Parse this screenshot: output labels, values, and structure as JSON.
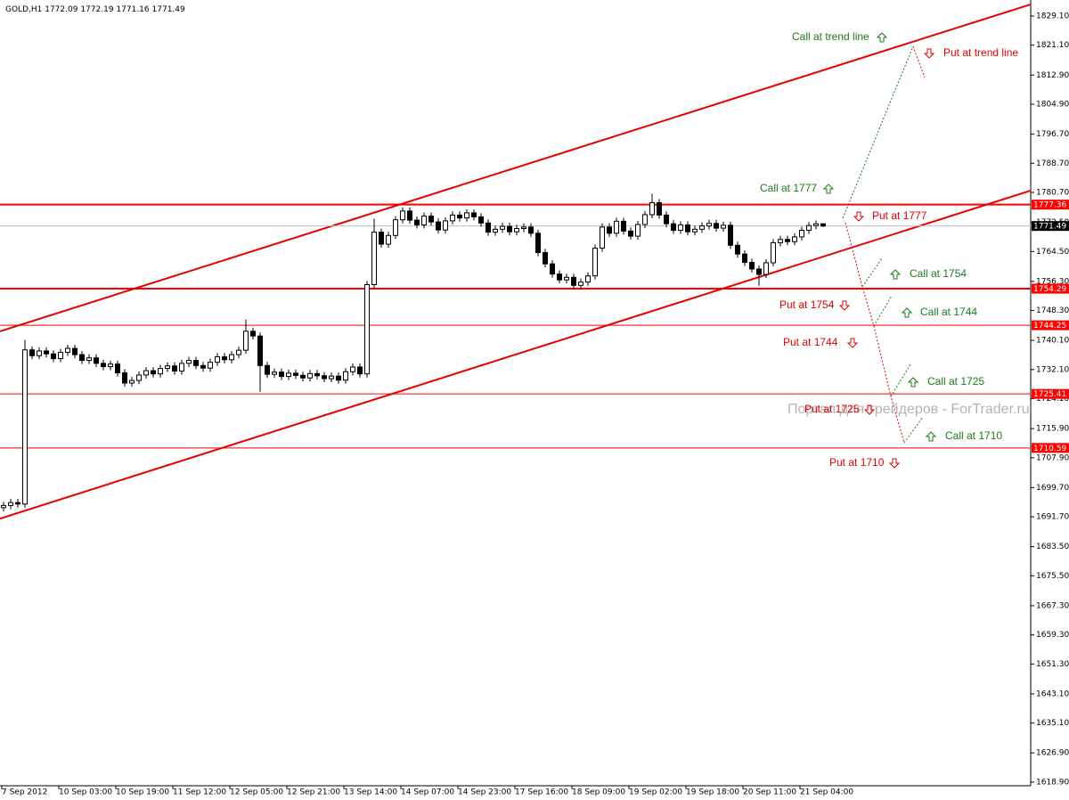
{
  "chart_data": {
    "type": "candlestick",
    "symbol": "GOLD,H1",
    "categories": [
      "7 Sep 2012",
      null,
      null,
      null,
      null,
      null,
      null,
      null,
      "10 Sep 03:00",
      null,
      null,
      null,
      null,
      null,
      null,
      null,
      "10 Sep 19:00",
      null,
      null,
      null,
      null,
      null,
      null,
      null,
      "11 Sep 12:00",
      null,
      null,
      null,
      null,
      null,
      null,
      null,
      "12 Sep 05:00",
      null,
      null,
      null,
      null,
      null,
      null,
      null,
      "12 Sep 21:00",
      null,
      null,
      null,
      null,
      null,
      null,
      null,
      "13 Sep 14:00",
      null,
      null,
      null,
      null,
      null,
      null,
      null,
      "14 Sep 07:00",
      null,
      null,
      null,
      null,
      null,
      null,
      null,
      "14 Sep 23:00",
      null,
      null,
      null,
      null,
      null,
      null,
      null,
      "17 Sep 16:00",
      null,
      null,
      null,
      null,
      null,
      null,
      null,
      "18 Sep 09:00",
      null,
      null,
      null,
      null,
      null,
      null,
      null,
      "19 Sep 02:00",
      null,
      null,
      null,
      null,
      null,
      null,
      null,
      "19 Sep 18:00",
      null,
      null,
      null,
      null,
      null,
      null,
      null,
      "20 Sep 11:00",
      null,
      null,
      null,
      null,
      null,
      null,
      null,
      "21 Sep 04:00",
      null,
      null,
      null
    ],
    "open": [
      1694.2,
      1694.8,
      1695.6,
      1695.2,
      1737.5,
      1735.9,
      1737.2,
      1736.4,
      1735.1,
      1736.8,
      1737.9,
      1736.2,
      1734.6,
      1735.3,
      1733.8,
      1732.9,
      1733.6,
      1731.2,
      1728.4,
      1729.1,
      1730.6,
      1731.8,
      1730.9,
      1732.4,
      1733.1,
      1731.7,
      1733.8,
      1734.6,
      1733.2,
      1732.5,
      1734.1,
      1735.6,
      1734.8,
      1736.2,
      1737.4,
      1742.6,
      1741.3,
      1733.2,
      1730.8,
      1731.4,
      1730.2,
      1731.1,
      1730.5,
      1729.8,
      1731.0,
      1730.4,
      1729.6,
      1730.3,
      1729.2,
      1731.5,
      1732.8,
      1730.9,
      1755.4,
      1769.8,
      1766.5,
      1768.9,
      1773.2,
      1775.6,
      1773.1,
      1771.8,
      1774.2,
      1772.6,
      1770.4,
      1772.9,
      1774.5,
      1773.7,
      1775.1,
      1774.0,
      1772.3,
      1769.8,
      1770.6,
      1771.4,
      1769.9,
      1770.8,
      1771.2,
      1769.5,
      1764.2,
      1761.1,
      1758.3,
      1756.7,
      1757.4,
      1755.2,
      1756.1,
      1757.8,
      1765.4,
      1771.2,
      1769.5,
      1772.8,
      1770.1,
      1768.7,
      1771.9,
      1774.6,
      1777.9,
      1774.5,
      1772.1,
      1770.3,
      1771.8,
      1769.9,
      1770.6,
      1771.5,
      1772.2,
      1770.9,
      1771.7,
      1766.2,
      1763.8,
      1761.5,
      1759.7,
      1758.2,
      1761.4,
      1766.9,
      1767.8,
      1767.2,
      1768.5,
      1770.3,
      1771.6,
      1772.09
    ],
    "high": [
      1695.8,
      1696.6,
      1696.6,
      1740.2,
      1738.5,
      1738.2,
      1738.2,
      1737.4,
      1737.8,
      1738.9,
      1738.9,
      1737.2,
      1736.3,
      1736.3,
      1734.8,
      1734.6,
      1734.6,
      1732.2,
      1730.1,
      1731.6,
      1732.8,
      1732.8,
      1733.4,
      1734.1,
      1734.1,
      1734.8,
      1735.6,
      1735.6,
      1734.2,
      1735.1,
      1736.6,
      1736.6,
      1737.2,
      1738.4,
      1745.8,
      1743.6,
      1742.3,
      1734.2,
      1732.4,
      1732.4,
      1732.1,
      1732.1,
      1731.5,
      1732.0,
      1732.0,
      1731.4,
      1731.3,
      1731.3,
      1732.5,
      1733.8,
      1733.8,
      1756.4,
      1773.5,
      1770.8,
      1769.9,
      1774.2,
      1776.6,
      1776.6,
      1774.1,
      1775.2,
      1775.2,
      1773.6,
      1773.9,
      1775.5,
      1775.5,
      1776.1,
      1776.1,
      1775.0,
      1773.3,
      1771.6,
      1772.4,
      1772.4,
      1771.8,
      1772.2,
      1772.2,
      1770.5,
      1765.2,
      1762.1,
      1759.3,
      1758.4,
      1758.4,
      1757.1,
      1758.8,
      1766.4,
      1772.2,
      1772.2,
      1773.8,
      1773.8,
      1771.1,
      1772.9,
      1775.6,
      1780.3,
      1778.9,
      1775.5,
      1773.1,
      1772.8,
      1772.8,
      1771.6,
      1772.5,
      1773.2,
      1773.2,
      1772.7,
      1772.7,
      1767.2,
      1764.8,
      1762.5,
      1760.7,
      1762.4,
      1767.9,
      1768.8,
      1768.8,
      1769.5,
      1771.3,
      1772.6,
      1773.0,
      1772.19
    ],
    "low": [
      1693.2,
      1693.8,
      1694.2,
      1694.2,
      1734.9,
      1734.9,
      1735.4,
      1734.1,
      1734.1,
      1735.8,
      1735.2,
      1733.6,
      1733.6,
      1732.8,
      1731.9,
      1731.9,
      1730.2,
      1727.4,
      1727.4,
      1728.1,
      1729.6,
      1729.9,
      1729.9,
      1731.4,
      1730.7,
      1730.7,
      1732.8,
      1732.2,
      1731.5,
      1731.5,
      1733.1,
      1733.8,
      1733.8,
      1735.2,
      1736.4,
      1740.3,
      1726.0,
      1729.8,
      1729.8,
      1729.2,
      1729.2,
      1729.5,
      1728.8,
      1728.8,
      1729.4,
      1728.6,
      1728.6,
      1728.2,
      1728.2,
      1730.5,
      1729.9,
      1729.9,
      1754.4,
      1765.5,
      1765.5,
      1767.9,
      1772.2,
      1772.1,
      1770.8,
      1770.8,
      1771.6,
      1769.4,
      1769.4,
      1771.9,
      1772.7,
      1772.7,
      1773.0,
      1771.3,
      1768.8,
      1768.8,
      1769.6,
      1768.9,
      1768.9,
      1769.8,
      1768.5,
      1763.2,
      1760.1,
      1757.3,
      1755.7,
      1755.7,
      1754.2,
      1754.2,
      1755.1,
      1756.8,
      1764.4,
      1768.5,
      1768.5,
      1769.1,
      1767.7,
      1767.7,
      1770.9,
      1773.6,
      1773.5,
      1771.1,
      1769.3,
      1769.3,
      1768.9,
      1768.9,
      1769.6,
      1770.5,
      1769.9,
      1769.9,
      1765.2,
      1762.8,
      1760.5,
      1758.7,
      1755.1,
      1757.2,
      1760.4,
      1765.9,
      1766.2,
      1766.2,
      1767.5,
      1769.3,
      1770.6,
      1771.16
    ],
    "close": [
      1694.8,
      1695.6,
      1695.2,
      1737.5,
      1735.9,
      1737.2,
      1736.4,
      1735.1,
      1736.8,
      1737.9,
      1736.2,
      1734.6,
      1735.3,
      1733.8,
      1732.9,
      1733.6,
      1731.2,
      1728.4,
      1729.1,
      1730.6,
      1731.8,
      1730.9,
      1732.4,
      1733.1,
      1731.7,
      1733.8,
      1734.6,
      1733.2,
      1732.5,
      1734.1,
      1735.6,
      1734.8,
      1736.2,
      1737.4,
      1742.6,
      1741.3,
      1733.2,
      1730.8,
      1731.4,
      1730.2,
      1731.1,
      1730.5,
      1729.8,
      1731.0,
      1730.4,
      1729.6,
      1730.3,
      1729.2,
      1731.5,
      1732.8,
      1730.9,
      1755.4,
      1769.8,
      1766.5,
      1768.9,
      1773.2,
      1775.6,
      1773.1,
      1771.8,
      1774.2,
      1772.6,
      1770.4,
      1772.9,
      1774.5,
      1773.7,
      1775.1,
      1774.0,
      1772.3,
      1769.8,
      1770.6,
      1771.4,
      1769.9,
      1770.8,
      1771.2,
      1769.5,
      1764.2,
      1761.1,
      1758.3,
      1756.7,
      1757.4,
      1755.2,
      1756.1,
      1757.8,
      1765.4,
      1771.2,
      1769.5,
      1772.8,
      1770.1,
      1768.7,
      1771.9,
      1774.6,
      1777.9,
      1774.5,
      1772.1,
      1770.3,
      1771.8,
      1769.9,
      1770.6,
      1771.5,
      1772.2,
      1770.9,
      1771.7,
      1766.2,
      1763.8,
      1761.5,
      1759.7,
      1758.2,
      1761.4,
      1766.9,
      1767.8,
      1767.2,
      1768.5,
      1770.3,
      1771.6,
      1772.09,
      1771.49
    ],
    "ylim": [
      1617.9,
      1833.5
    ],
    "yticks": [
      {
        "value": 1829.1,
        "label": "1829.10"
      },
      {
        "value": 1821.1,
        "label": "1821.10"
      },
      {
        "value": 1812.9,
        "label": "1812.90"
      },
      {
        "value": 1804.9,
        "label": "1804.90"
      },
      {
        "value": 1796.7,
        "label": "1796.70"
      },
      {
        "value": 1788.7,
        "label": "1788.70"
      },
      {
        "value": 1780.7,
        "label": "1780.70"
      },
      {
        "value": 1772.5,
        "label": "1772.50"
      },
      {
        "value": 1764.5,
        "label": "1764.50"
      },
      {
        "value": 1756.3,
        "label": "1756.30"
      },
      {
        "value": 1748.3,
        "label": "1748.30"
      },
      {
        "value": 1740.1,
        "label": "1740.10"
      },
      {
        "value": 1732.1,
        "label": "1732.10"
      },
      {
        "value": 1724.1,
        "label": "1724.10"
      },
      {
        "value": 1715.9,
        "label": "1715.90"
      },
      {
        "value": 1707.9,
        "label": "1707.90"
      },
      {
        "value": 1699.7,
        "label": "1699.70"
      },
      {
        "value": 1691.7,
        "label": "1691.70"
      },
      {
        "value": 1683.5,
        "label": "1683.50"
      },
      {
        "value": 1675.5,
        "label": "1675.50"
      },
      {
        "value": 1667.3,
        "label": "1667.30"
      },
      {
        "value": 1659.3,
        "label": "1659.30"
      },
      {
        "value": 1651.3,
        "label": "1651.30"
      },
      {
        "value": 1643.1,
        "label": "1643.10"
      },
      {
        "value": 1635.1,
        "label": "1635.10"
      },
      {
        "value": 1626.9,
        "label": "1626.90"
      },
      {
        "value": 1618.9,
        "label": "1618.90"
      }
    ],
    "levels": [
      1777.36,
      1754.29,
      1744.25,
      1725.41,
      1710.59
    ],
    "level_color": "#ff0000",
    "trendlines": [
      {
        "from": 1742.6,
        "to": 1832.3
      },
      {
        "from": 1691.2,
        "to": 1781.2
      }
    ],
    "trendline_color": "#e60000",
    "annotations": [
      {
        "text": "Call at trend line",
        "color": "#1a7a1a"
      },
      {
        "text": "Put at trend line",
        "color": "#e00000"
      },
      {
        "text": "Call at 1777",
        "color": "#1a7a1a"
      },
      {
        "text": "Put at 1777",
        "color": "#e00000"
      },
      {
        "text": "Call at 1754",
        "color": "#1a7a1a"
      },
      {
        "text": "Put at 1754",
        "color": "#e00000"
      },
      {
        "text": "Call at 1744",
        "color": "#1a7a1a"
      },
      {
        "text": "Put at 1744",
        "color": "#e00000"
      },
      {
        "text": "Call at 1725",
        "color": "#1a7a1a"
      },
      {
        "text": "Put at 1725",
        "color": "#e00000"
      },
      {
        "text": "Call at 1710",
        "color": "#1a7a1a"
      },
      {
        "text": "Put at 1710",
        "color": "#e00000"
      }
    ],
    "watermark": "Портал для трейдеров - ForTrader.ru"
  }
}
